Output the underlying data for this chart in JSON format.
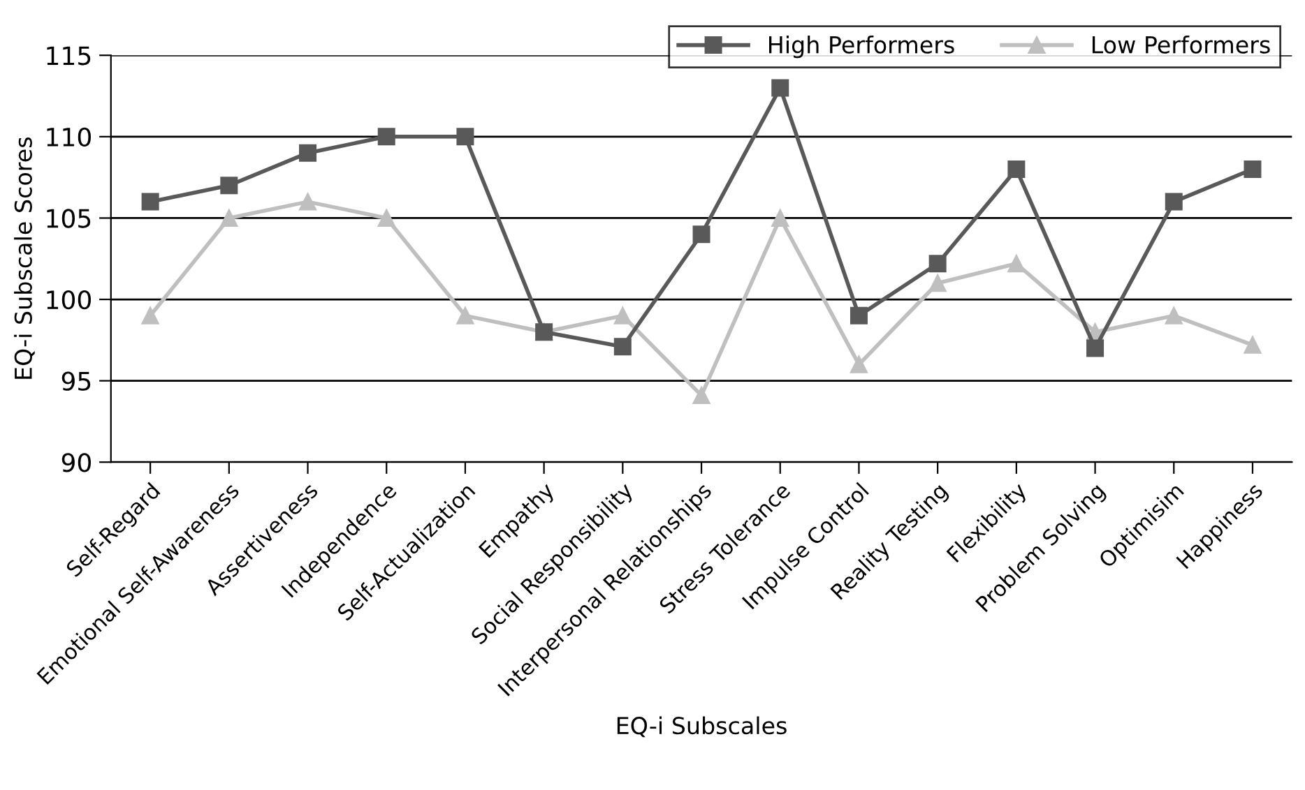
{
  "chart_data": {
    "type": "line",
    "xlabel": "EQ-i Subscales",
    "ylabel": "EQ-i Subscale Scores",
    "categories": [
      "Self-Regard",
      "Emotional Self-Awareness",
      "Assertiveness",
      "Independence",
      "Self-Actualization",
      "Empathy",
      "Social Responsibility",
      "Interpersonal Relationships",
      "Stress Tolerance",
      "Impulse Control",
      "Reality Testing",
      "Flexibility",
      "Problem Solving",
      "Optimisim",
      "Happiness"
    ],
    "series": [
      {
        "name": "High Performers",
        "color": "#595959",
        "marker": "square",
        "values": [
          106,
          107,
          109,
          110,
          110,
          98,
          97.1,
          104,
          113,
          99,
          102.2,
          108,
          97,
          106,
          108
        ]
      },
      {
        "name": "Low Performers",
        "color": "#bfbfbf",
        "marker": "triangle",
        "values": [
          99,
          105,
          106,
          105,
          99,
          98,
          99,
          94.1,
          105,
          96,
          101,
          102.2,
          98,
          99,
          97.2
        ]
      }
    ],
    "ylim": [
      90,
      115
    ],
    "yticks": [
      90,
      95,
      100,
      105,
      110,
      115
    ],
    "grid": "y",
    "legend": "top right",
    "line_style": "solid"
  }
}
